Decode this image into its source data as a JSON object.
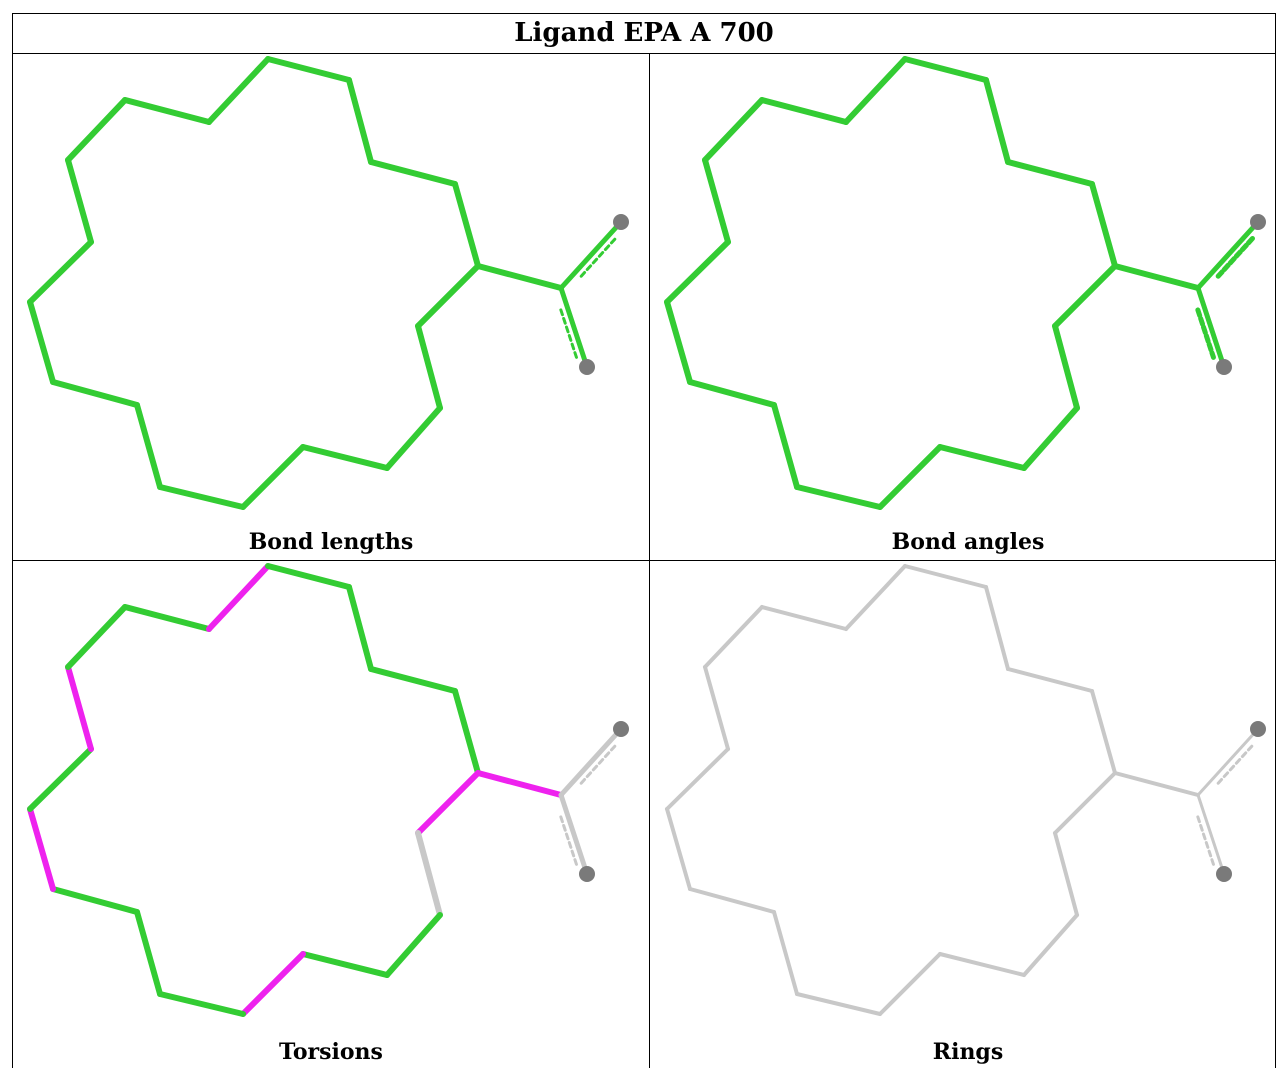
{
  "table": {
    "title": "Ligand EPA A 700"
  },
  "panels": [
    {
      "id": "bond-lengths",
      "caption": "Bond lengths",
      "mode": "bond-lengths"
    },
    {
      "id": "bond-angles",
      "caption": "Bond angles",
      "mode": "bond-angles"
    },
    {
      "id": "torsions",
      "caption": "Torsions",
      "mode": "torsions"
    },
    {
      "id": "rings",
      "caption": "Rings",
      "mode": "rings"
    }
  ],
  "colors": {
    "ok": "#33cc33",
    "outlier": "#ee22ee",
    "neutral": "#c8c8c8",
    "atom": "#7a7a7a",
    "grid": "#000000"
  },
  "torsion_outliers": [
    1,
    6,
    10,
    14,
    16,
    21
  ]
}
